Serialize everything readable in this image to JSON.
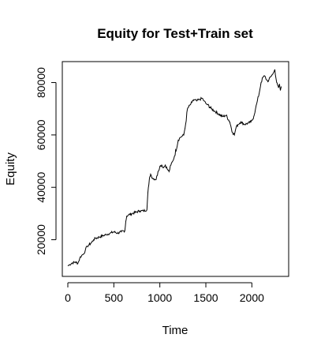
{
  "chart_data": {
    "type": "line",
    "title": "Equity for Test+Train set",
    "xlabel": "Time",
    "ylabel": "Equity",
    "xlim": [
      -60,
      2400
    ],
    "ylim": [
      6000,
      88000
    ],
    "x_ticks": [
      0,
      500,
      1000,
      1500,
      2000
    ],
    "y_ticks": [
      20000,
      40000,
      60000,
      80000
    ],
    "grid": false,
    "legend": "none",
    "line_color": "#000000",
    "series": [
      {
        "x": [
          0,
          20,
          40,
          80,
          110,
          130,
          150,
          170,
          190,
          210,
          230,
          260,
          280,
          300,
          340,
          380,
          420,
          460,
          500,
          540,
          580,
          620,
          630,
          640,
          660,
          700,
          740,
          780,
          820,
          860,
          870,
          880,
          890,
          900,
          920,
          960,
          980,
          1000,
          1020,
          1040,
          1060,
          1080,
          1100,
          1120,
          1140,
          1160,
          1200,
          1220,
          1240,
          1260,
          1280,
          1300,
          1330,
          1350,
          1370,
          1400,
          1430,
          1460,
          1480,
          1500,
          1520,
          1560,
          1600,
          1640,
          1680,
          1720,
          1760,
          1790,
          1810,
          1830,
          1850,
          1880,
          1920,
          1960,
          1990,
          2010,
          2020,
          2040,
          2060,
          2080,
          2100,
          2120,
          2140,
          2160,
          2180,
          2200,
          2220,
          2240,
          2250,
          2260,
          2270,
          2280,
          2290,
          2300,
          2310,
          2320
        ],
        "y": [
          10000,
          10500,
          11000,
          11500,
          11000,
          13000,
          14000,
          14500,
          16000,
          17500,
          18000,
          19000,
          20000,
          20500,
          21000,
          21500,
          22000,
          22500,
          23000,
          22500,
          23000,
          23500,
          27000,
          29000,
          29500,
          30000,
          30500,
          31000,
          31000,
          31500,
          38000,
          41000,
          44000,
          45000,
          43500,
          43000,
          46000,
          48000,
          48500,
          47500,
          48500,
          47000,
          46000,
          48500,
          50000,
          52000,
          58000,
          59000,
          59500,
          60000,
          64000,
          70000,
          71500,
          72500,
          73500,
          73000,
          73500,
          74000,
          73000,
          72000,
          71500,
          70000,
          69000,
          68000,
          67000,
          67500,
          65000,
          61000,
          60000,
          63000,
          64000,
          65000,
          64000,
          64500,
          65000,
          66000,
          67000,
          70000,
          73000,
          76000,
          80000,
          82000,
          82500,
          81000,
          80500,
          82000,
          83000,
          84000,
          85000,
          82000,
          80000,
          79000,
          78000,
          79500,
          77000,
          78500
        ]
      }
    ]
  }
}
